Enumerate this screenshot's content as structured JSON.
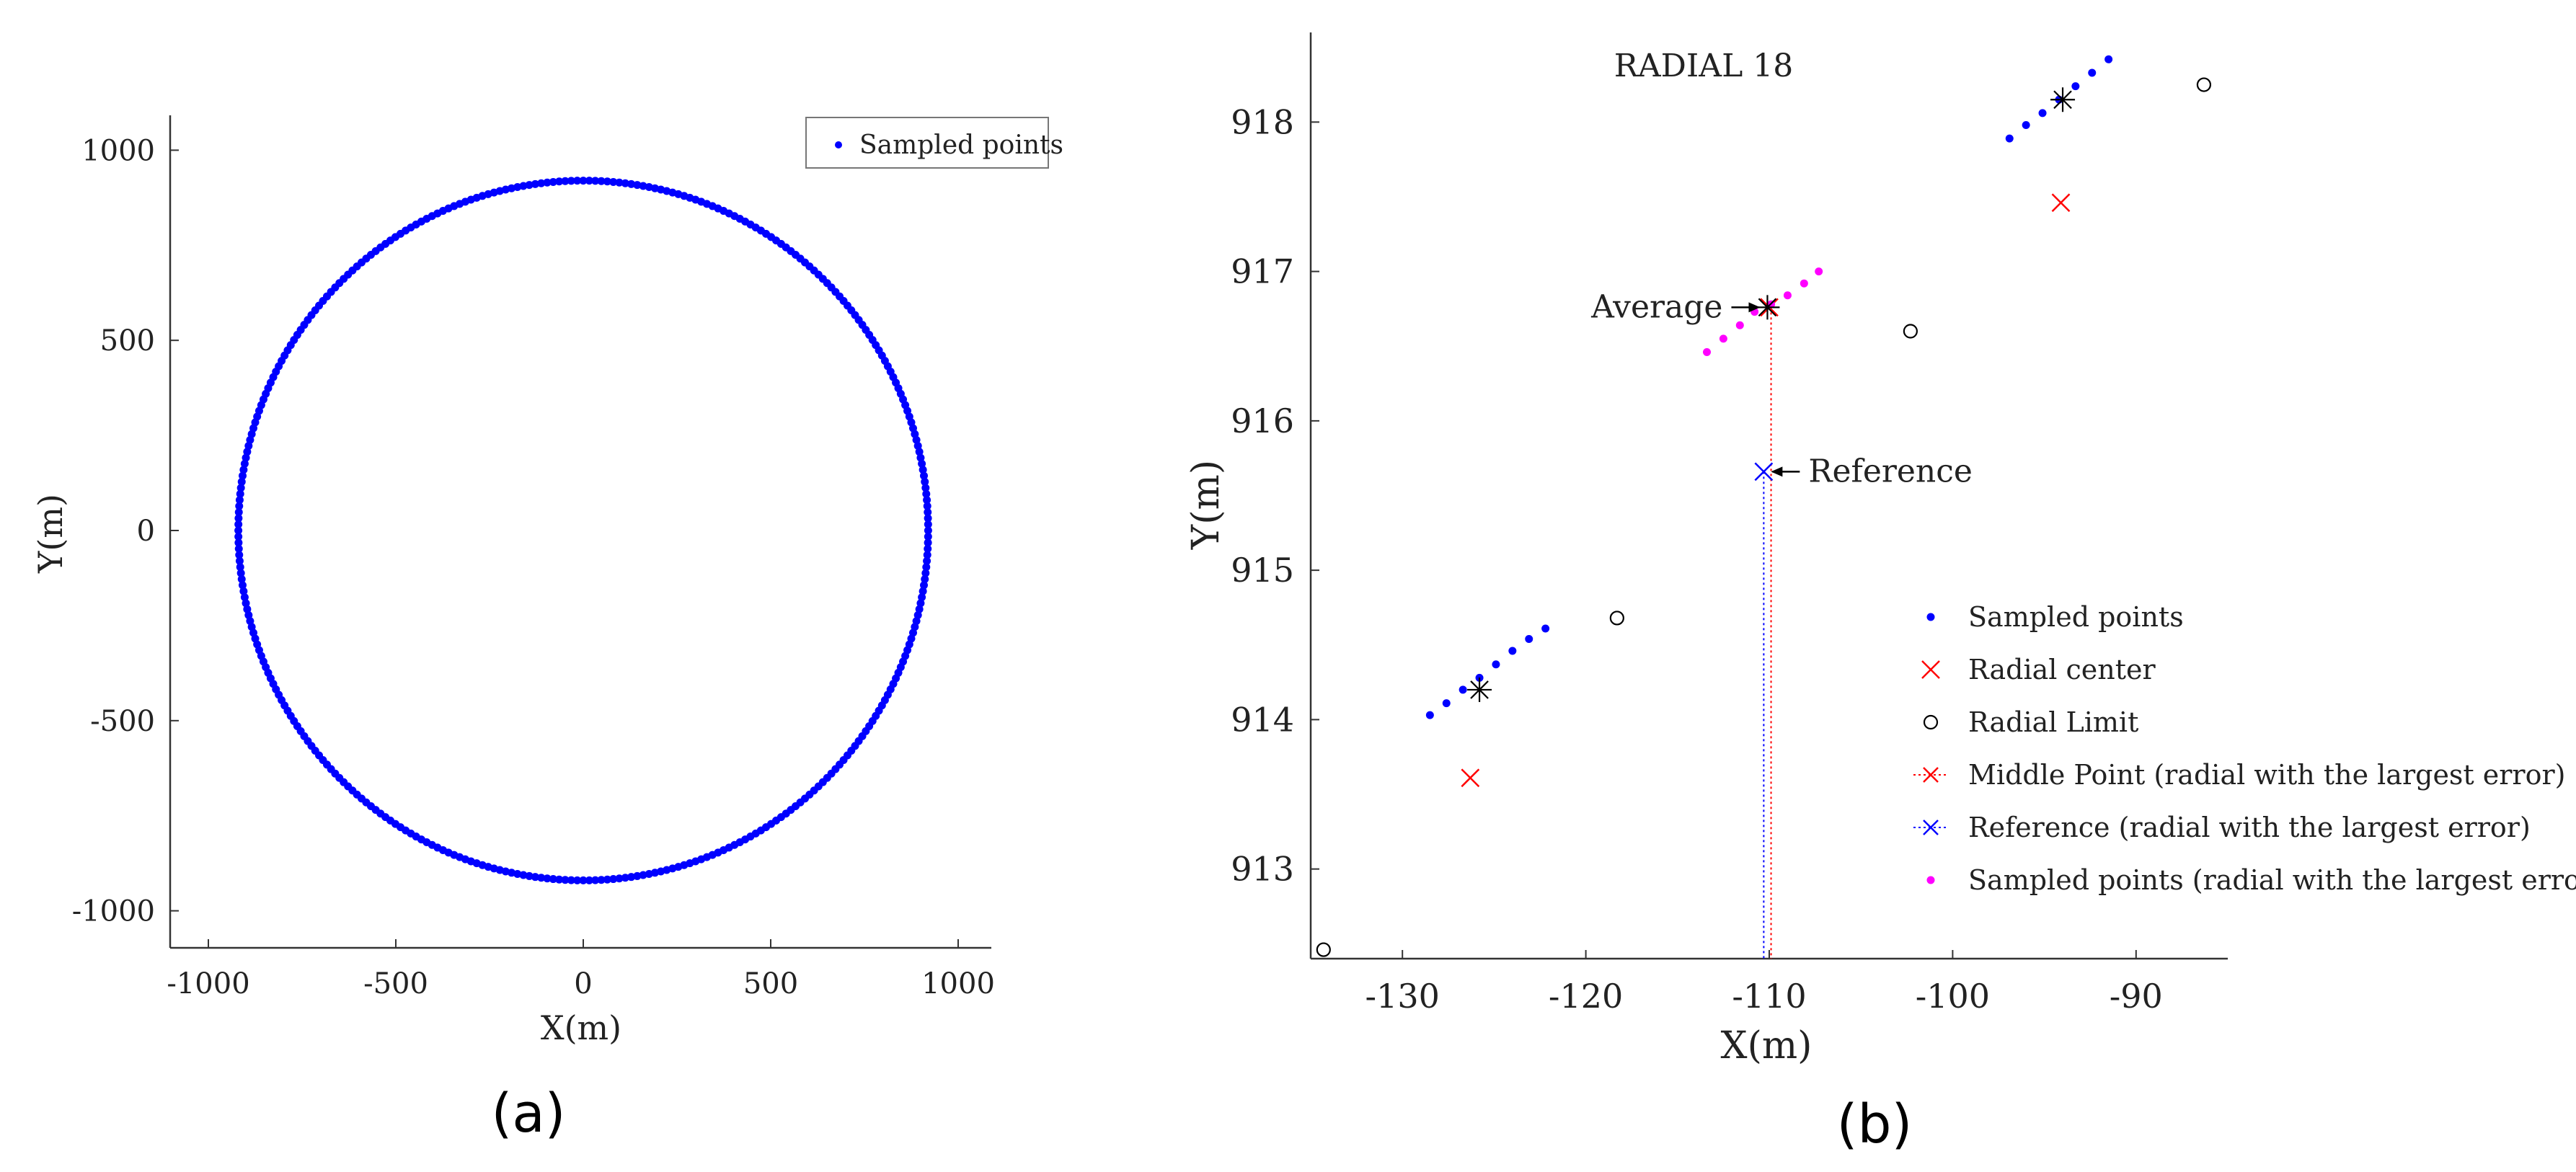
{
  "figure": {
    "panel_a_label": "(a)",
    "panel_b_label": "(b)"
  },
  "chart_data": [
    {
      "id": "a",
      "type": "scatter",
      "title": "",
      "xlabel": "X(m)",
      "ylabel": "Y(m)",
      "xlim": [
        -1050,
        1050
      ],
      "ylim": [
        -1050,
        1050
      ],
      "xticks": [
        -1000,
        -500,
        0,
        500,
        1000
      ],
      "yticks": [
        -1000,
        -500,
        0,
        500,
        1000
      ],
      "xtick_labels": [
        "-1000",
        "-500",
        "0",
        "500",
        "1000"
      ],
      "ytick_labels": [
        "-1000",
        "-500",
        "0",
        "500",
        "1000"
      ],
      "grid": false,
      "legend_position": "top-right",
      "series": [
        {
          "name": "Sampled points",
          "color": "#0000ff",
          "marker": "dot",
          "shape": "circle",
          "center": [
            0,
            0
          ],
          "radius": 920,
          "n_points": 360
        }
      ]
    },
    {
      "id": "b",
      "type": "scatter",
      "title": "RADIAL 18",
      "xlabel": "X(m)",
      "ylabel": "Y(m)",
      "xlim": [
        -135,
        -85
      ],
      "ylim": [
        912.4,
        918.6
      ],
      "xticks": [
        -130,
        -120,
        -110,
        -100,
        -90
      ],
      "yticks": [
        913,
        914,
        915,
        916,
        917,
        918
      ],
      "xtick_labels": [
        "-130",
        "-120",
        "-110",
        "-100",
        "-90"
      ],
      "ytick_labels": [
        "913",
        "914",
        "915",
        "916",
        "917",
        "918"
      ],
      "grid": false,
      "legend_position": "bottom-right",
      "series": [
        {
          "name": "Sampled points",
          "color": "#0000ff",
          "marker": "dot",
          "points": [
            [
              -128.5,
              914.03
            ],
            [
              -127.6,
              914.11
            ],
            [
              -126.7,
              914.2
            ],
            [
              -125.8,
              914.28
            ],
            [
              -124.9,
              914.37
            ],
            [
              -124.0,
              914.46
            ],
            [
              -123.1,
              914.54
            ],
            [
              -122.2,
              914.61
            ],
            [
              -96.9,
              917.89
            ],
            [
              -96.0,
              917.98
            ],
            [
              -95.1,
              918.06
            ],
            [
              -94.2,
              918.15
            ],
            [
              -93.3,
              918.24
            ],
            [
              -92.4,
              918.33
            ],
            [
              -91.5,
              918.42
            ]
          ]
        },
        {
          "name": "Radial center",
          "color": "#ff0000",
          "marker": "x",
          "points": [
            [
              -126.3,
              913.61
            ],
            [
              -94.1,
              917.46
            ]
          ]
        },
        {
          "name": "Radial Limit",
          "color": "#000000",
          "marker": "circle",
          "points": [
            [
              -134.3,
              912.46
            ],
            [
              -118.3,
              914.68
            ],
            [
              -102.3,
              916.6
            ],
            [
              -86.3,
              918.25
            ]
          ]
        },
        {
          "name": "Middle Point (radial with the largest error)",
          "color": "#ff0000",
          "marker": "x-dotted-line",
          "points": [
            [
              -110.0,
              916.76
            ]
          ]
        },
        {
          "name": "Reference (radial with the largest error)",
          "color": "#0000ff",
          "marker": "x-dotted-line",
          "points": [
            [
              -110.3,
              915.66
            ]
          ]
        },
        {
          "name": "Sampled points (radial with the largest error)",
          "color": "#ff00ff",
          "marker": "dot",
          "points": [
            [
              -113.4,
              916.46
            ],
            [
              -112.5,
              916.55
            ],
            [
              -111.6,
              916.64
            ],
            [
              -110.8,
              916.73
            ],
            [
              -109.9,
              916.78
            ],
            [
              -109.0,
              916.84
            ],
            [
              -108.1,
              916.92
            ],
            [
              -107.3,
              917.0
            ]
          ]
        },
        {
          "name": "Average",
          "color": "#000000",
          "marker": "asterisk",
          "points": [
            [
              -125.8,
              914.2
            ],
            [
              -110.1,
              916.76
            ],
            [
              -94.0,
              918.15
            ]
          ]
        }
      ],
      "vertical_lines": [
        {
          "name": "middle-line",
          "color": "#ff0000",
          "x": -109.9,
          "y_from": 916.76,
          "y_to": 912.4
        },
        {
          "name": "reference-line",
          "color": "#0000ff",
          "x": -110.3,
          "y_from": 915.66,
          "y_to": 912.4
        }
      ],
      "annotations": [
        {
          "text": "Average",
          "target": [
            -110.1,
            916.76
          ],
          "side": "left"
        },
        {
          "text": "Reference",
          "target": [
            -110.3,
            915.66
          ],
          "side": "right"
        }
      ]
    }
  ]
}
